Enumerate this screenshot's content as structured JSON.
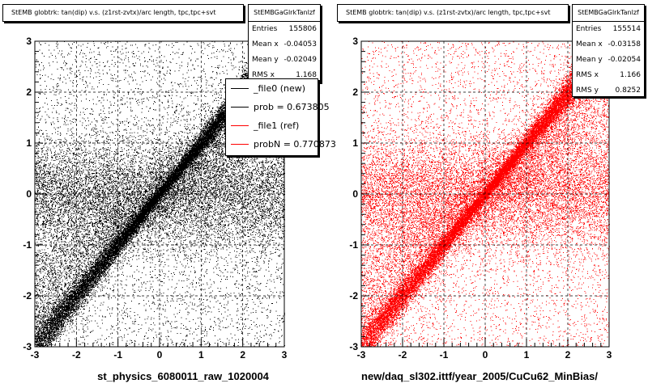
{
  "chart_data": [
    {
      "type": "scatter",
      "title": "StEMB globtrk: tan(dip) v.s. (z1rst-zvtx)/arc length, tpc,tpc+svt",
      "xlabel": "st_physics_6080011_raw_1020004",
      "ylabel": "",
      "xlim": [
        -3,
        3
      ],
      "ylim": [
        -3,
        3
      ],
      "x_ticks": [
        "-3",
        "-2",
        "-1",
        "0",
        "1",
        "2",
        "3"
      ],
      "y_ticks": [
        "-3",
        "-2",
        "-1",
        "0",
        "1",
        "2",
        "3"
      ],
      "grid": true,
      "marker_color": "#000000",
      "stats": {
        "name": "StEMBGaGlrkTanlzf",
        "rows": [
          {
            "label": "Entries",
            "value": "155806"
          },
          {
            "label": "Mean x",
            "value": "-0.04053"
          },
          {
            "label": "Mean y",
            "value": "-0.02049"
          },
          {
            "label": "RMS x",
            "value": "1.168"
          }
        ]
      },
      "legend": {
        "placement": "top-right",
        "entries": [
          {
            "label": "_file0 (new)",
            "color": "#000000"
          },
          {
            "label": "prob = 0.673805",
            "color": "#000000"
          },
          {
            "label": "_file1 (ref)",
            "color": "#ff0000"
          },
          {
            "label": "probN = 0.770873",
            "color": "#ff0000"
          }
        ]
      },
      "series": [
        {
          "component": "diagonal band",
          "slope": 1.0,
          "x_range": [
            -3,
            2.3
          ],
          "color": "#000000"
        },
        {
          "component": "horizontal band",
          "y_center": 0.0,
          "x_range": [
            -3,
            3
          ],
          "color": "#000000"
        },
        {
          "component": "uniform background",
          "x_range": [
            -3,
            3
          ],
          "y_range": [
            -3,
            3
          ],
          "color": "#000000"
        }
      ]
    },
    {
      "type": "scatter",
      "title": "StEMB globtrk: tan(dip) v.s. (z1rst-zvtx)/arc length, tpc,tpc+svt",
      "xlabel": "new/daq_sl302.ittf/year_2005/CuCu62_MinBias/",
      "ylabel": "",
      "xlim": [
        -3,
        3
      ],
      "ylim": [
        -3,
        3
      ],
      "x_ticks": [
        "-3",
        "-2",
        "-1",
        "0",
        "1",
        "2",
        "3"
      ],
      "y_ticks": [
        "-3",
        "-2",
        "-1",
        "0",
        "1",
        "2",
        "3"
      ],
      "grid": true,
      "marker_color": "#ff0000",
      "stats": {
        "name": "StEMBGaGlrkTanlzf",
        "rows": [
          {
            "label": "Entries",
            "value": "155514"
          },
          {
            "label": "Mean x",
            "value": "-0.03158"
          },
          {
            "label": "Mean y",
            "value": "-0.02054"
          },
          {
            "label": "RMS x",
            "value": "1.166"
          },
          {
            "label": "RMS y",
            "value": "0.8252"
          }
        ]
      },
      "series": [
        {
          "component": "diagonal band",
          "slope": 1.0,
          "x_range": [
            -3,
            2.3
          ],
          "color": "#ff0000"
        },
        {
          "component": "horizontal band",
          "y_center": 0.0,
          "x_range": [
            -3,
            3
          ],
          "color": "#ff0000"
        },
        {
          "component": "uniform background",
          "x_range": [
            -3,
            3
          ],
          "y_range": [
            -3,
            3
          ],
          "color": "#ff0000"
        }
      ]
    }
  ]
}
